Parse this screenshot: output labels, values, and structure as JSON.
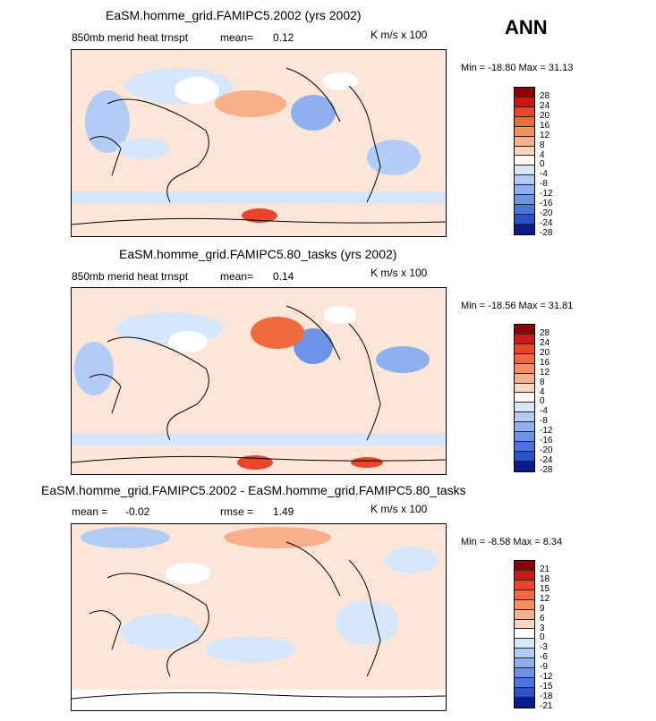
{
  "season": "ANN",
  "panels": [
    {
      "title": "EaSM.homme_grid.FAMIPC5.2002 (yrs 2002)",
      "variable": "850mb merid heat trnspt",
      "mean_label": "mean=",
      "mean_value": "0.12",
      "units": "K m/s x 100",
      "min_label": "Min =",
      "min_value": "-18.80",
      "max_label": "Max =",
      "max_value": "31.13",
      "colorbar_labels": [
        "28",
        "24",
        "20",
        "16",
        "12",
        "8",
        "4",
        "0",
        "-4",
        "-8",
        "-12",
        "-16",
        "-20",
        "-24",
        "-28"
      ],
      "colors": [
        "#8b0000",
        "#c8181a",
        "#e8452a",
        "#f06a3e",
        "#f5905e",
        "#f8b08a",
        "#fcd6be",
        "#fff8ee",
        "#d6e6fb",
        "#b3ccf5",
        "#8fb0ef",
        "#6d93e8",
        "#4a73e0",
        "#2a50cc",
        "#0a1a8f"
      ]
    },
    {
      "title": "EaSM.homme_grid.FAMIPC5.80_tasks (yrs 2002)",
      "variable": "850mb merid heat trnspt",
      "mean_label": "mean=",
      "mean_value": "0.14",
      "units": "K m/s x 100",
      "min_label": "Min =",
      "min_value": "-18.56",
      "max_label": "Max =",
      "max_value": "31.81",
      "colorbar_labels": [
        "28",
        "24",
        "20",
        "16",
        "12",
        "8",
        "4",
        "0",
        "-4",
        "-8",
        "-12",
        "-16",
        "-20",
        "-24",
        "-28"
      ],
      "colors": [
        "#8b0000",
        "#c8181a",
        "#e8452a",
        "#f06a3e",
        "#f5905e",
        "#f8b08a",
        "#fcd6be",
        "#fff8ee",
        "#d6e6fb",
        "#b3ccf5",
        "#8fb0ef",
        "#6d93e8",
        "#4a73e0",
        "#2a50cc",
        "#0a1a8f"
      ]
    },
    {
      "title": "EaSM.homme_grid.FAMIPC5.2002 - EaSM.homme_grid.FAMIPC5.80_tasks",
      "mean_label": "mean =",
      "mean_value": "-0.02",
      "rmse_label": "rmse =",
      "rmse_value": "1.49",
      "units": "K m/s x 100",
      "min_label": "Min =",
      "min_value": "-8.58",
      "max_label": "Max =",
      "max_value": "8.34",
      "colorbar_labels": [
        "21",
        "18",
        "15",
        "12",
        "9",
        "6",
        "3",
        "0",
        "-3",
        "-6",
        "-9",
        "-12",
        "-15",
        "-18",
        "-21"
      ],
      "colors": [
        "#8b0000",
        "#c8181a",
        "#e8452a",
        "#f06a3e",
        "#f5905e",
        "#f8b08a",
        "#fcd6be",
        "#ffffff",
        "#d6e6fb",
        "#b3ccf5",
        "#8fb0ef",
        "#6d93e8",
        "#4a73e0",
        "#2a50cc",
        "#0a1a8f"
      ]
    }
  ]
}
